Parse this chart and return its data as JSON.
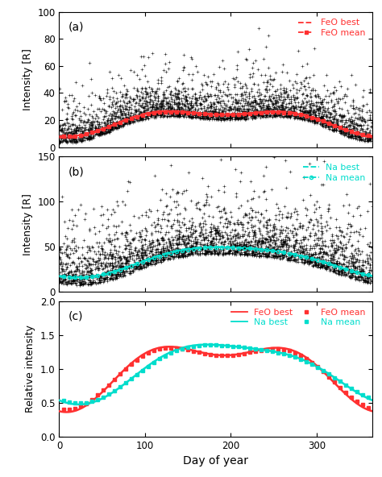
{
  "panel_a": {
    "label": "(a)",
    "ylabel": "Intensity [R]",
    "ylim": [
      0,
      100
    ],
    "yticks": [
      0,
      20,
      40,
      60,
      80,
      100
    ],
    "scatter_color": "black",
    "scatter_marker": "+",
    "scatter_size": 5,
    "line_best_color": "#ff3030",
    "line_mean_color": "#ff3030",
    "legend_entries": [
      "FeO best",
      "FeO mean"
    ]
  },
  "panel_b": {
    "label": "(b)",
    "ylabel": "Intensity [R]",
    "ylim": [
      0,
      150
    ],
    "yticks": [
      0,
      50,
      100,
      150
    ],
    "scatter_color": "black",
    "scatter_marker": "+",
    "scatter_size": 5,
    "line_best_color": "#00ddcc",
    "line_mean_color": "#00ddcc",
    "legend_entries": [
      "Na best",
      "Na mean"
    ]
  },
  "panel_c": {
    "label": "(c)",
    "ylabel": "Relative intensity",
    "ylim": [
      0.0,
      2.0
    ],
    "yticks": [
      0.0,
      0.5,
      1.0,
      1.5,
      2.0
    ],
    "feo_best_color": "#ff3030",
    "feo_mean_color": "#ff3030",
    "na_best_color": "#00ddcc",
    "na_mean_color": "#00ddcc",
    "legend_entries": [
      "FeO best",
      "FeO mean",
      "Na best",
      "Na mean"
    ]
  },
  "xlim": [
    0,
    365
  ],
  "xticks": [
    0,
    100,
    200,
    300
  ],
  "xlabel": "Day of year",
  "background_color": "white"
}
